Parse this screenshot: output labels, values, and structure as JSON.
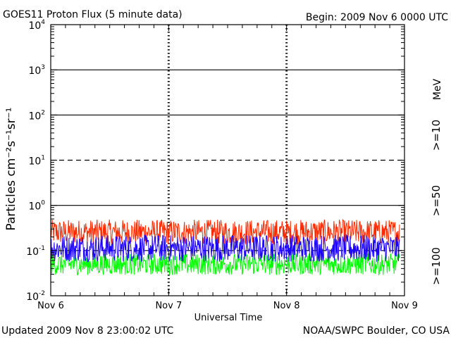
{
  "header": {
    "title": "GOES11 Proton Flux (5 minute data)",
    "begin": "Begin: 2009 Nov 6 0000 UTC"
  },
  "footer": {
    "updated": "Updated 2009 Nov  8 23:00:02 UTC",
    "credit": "NOAA/SWPC Boulder, CO USA"
  },
  "colors": {
    "ge10": "#ff2a00",
    "ge50": "#1a00ff",
    "ge100": "#00ff00",
    "axis": "#000000"
  },
  "chart_data": {
    "type": "line",
    "title": "GOES11 Proton Flux (5 minute data)",
    "xlabel": "Universal Time",
    "ylabel": "Particles cm⁻²s⁻¹sr⁻¹",
    "y_scale": "log",
    "ylim": [
      0.01,
      10000
    ],
    "xlim": [
      "2009-11-06 00:00",
      "2009-11-09 00:00"
    ],
    "x_ticks": [
      "Nov 6",
      "Nov 7",
      "Nov 8",
      "Nov 9"
    ],
    "y_ticks": [
      {
        "base": "10",
        "exp": "-2"
      },
      {
        "base": "10",
        "exp": "-1"
      },
      {
        "base": "10",
        "exp": "0"
      },
      {
        "base": "10",
        "exp": "1"
      },
      {
        "base": "10",
        "exp": "2"
      },
      {
        "base": "10",
        "exp": "3"
      },
      {
        "base": "10",
        "exp": "4"
      }
    ],
    "unit_label": "MeV",
    "grid": "solid at 10^0, 10^2, 10^3; dashed at 10^1, 10^-1; dashed vertical at day boundaries",
    "series": [
      {
        "name": ">=10",
        "color": "#ff2a00",
        "x": [
          "2009-11-06 00:00",
          "2009-11-06 12:00",
          "2009-11-07 00:00",
          "2009-11-07 12:00",
          "2009-11-08 00:00",
          "2009-11-08 12:00",
          "2009-11-08 23:00"
        ],
        "values": [
          0.25,
          0.26,
          0.26,
          0.25,
          0.26,
          0.25,
          0.26
        ]
      },
      {
        "name": ">=50",
        "color": "#1a00ff",
        "x": [
          "2009-11-06 00:00",
          "2009-11-06 12:00",
          "2009-11-07 00:00",
          "2009-11-07 12:00",
          "2009-11-08 00:00",
          "2009-11-08 12:00",
          "2009-11-08 23:00"
        ],
        "values": [
          0.11,
          0.11,
          0.12,
          0.11,
          0.11,
          0.11,
          0.12
        ]
      },
      {
        "name": ">=100",
        "color": "#00ff00",
        "x": [
          "2009-11-06 00:00",
          "2009-11-06 12:00",
          "2009-11-07 00:00",
          "2009-11-07 12:00",
          "2009-11-08 00:00",
          "2009-11-08 12:00",
          "2009-11-08 23:00"
        ],
        "values": [
          0.05,
          0.05,
          0.05,
          0.05,
          0.05,
          0.05,
          0.05
        ]
      }
    ]
  }
}
